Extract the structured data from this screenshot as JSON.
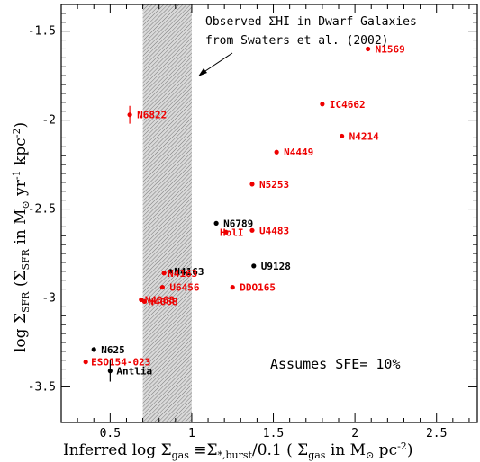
{
  "chart_data": {
    "type": "scatter",
    "xlabel": "Inferred log Σgas ≡Σ*,burst/0.1 ( Σgas in M⊙ pc⁻²)",
    "ylabel": "log ΣSFR (ΣSFR in M⊙ yr⁻¹ kpc⁻²)",
    "xlim": [
      0.2,
      2.75
    ],
    "ylim": [
      -3.7,
      -1.35
    ],
    "x_ticks": [
      0.5,
      1,
      1.5,
      2,
      2.5
    ],
    "y_ticks": [
      -3.5,
      -3,
      -2.5,
      -2,
      -1.5
    ],
    "x_tick_labels": [
      "0.5",
      "1",
      "1.5",
      "2",
      "2.5"
    ],
    "y_tick_labels": [
      "-3.5",
      "-3",
      "-2.5",
      "-2",
      "-1.5"
    ],
    "grid": false,
    "shaded_band": {
      "x_range": [
        0.7,
        1.0
      ]
    },
    "annotation_lines": [
      "Observed ΣHI in Dwarf Galaxies",
      "from Swaters et al. (2002)"
    ],
    "note": "Assumes SFE= 10%",
    "colors": {
      "red": "#ee0000",
      "black": "#000000",
      "band": "#999999"
    },
    "points": [
      {
        "label": "N1569",
        "x": 2.08,
        "y": -1.6,
        "color": "red"
      },
      {
        "label": "IC4662",
        "x": 1.8,
        "y": -1.91,
        "color": "red"
      },
      {
        "label": "N4214",
        "x": 1.92,
        "y": -2.09,
        "color": "red"
      },
      {
        "label": "N4449",
        "x": 1.52,
        "y": -2.18,
        "color": "red"
      },
      {
        "label": "N5253",
        "x": 1.37,
        "y": -2.36,
        "color": "red"
      },
      {
        "label": "N6822",
        "x": 0.62,
        "y": -1.97,
        "color": "red",
        "yerr": 0.03
      },
      {
        "label": "HolI",
        "x": 1.21,
        "y": -2.63,
        "color": "red"
      },
      {
        "label": "U4483",
        "x": 1.37,
        "y": -2.62,
        "color": "red"
      },
      {
        "label": "N6789",
        "x": 1.15,
        "y": -2.58,
        "color": "black"
      },
      {
        "label": "U9128",
        "x": 1.38,
        "y": -2.82,
        "color": "black"
      },
      {
        "label": "N4163",
        "x": 0.87,
        "y": -2.85,
        "color": "black"
      },
      {
        "label": "N4163",
        "x": 0.83,
        "y": -2.86,
        "color": "red"
      },
      {
        "label": "U6456",
        "x": 0.82,
        "y": -2.94,
        "color": "red"
      },
      {
        "label": "DDO165",
        "x": 1.25,
        "y": -2.94,
        "color": "red"
      },
      {
        "label": "N4068",
        "x": 0.69,
        "y": -3.01,
        "color": "red"
      },
      {
        "label": "N4068",
        "x": 0.71,
        "y": -3.02,
        "color": "red"
      },
      {
        "label": "N625",
        "x": 0.4,
        "y": -3.29,
        "color": "black"
      },
      {
        "label": "ESO154-023",
        "x": 0.35,
        "y": -3.36,
        "color": "red"
      },
      {
        "label": "Antlia",
        "x": 0.5,
        "y": -3.41,
        "color": "black",
        "yerr": 0.04
      }
    ]
  }
}
